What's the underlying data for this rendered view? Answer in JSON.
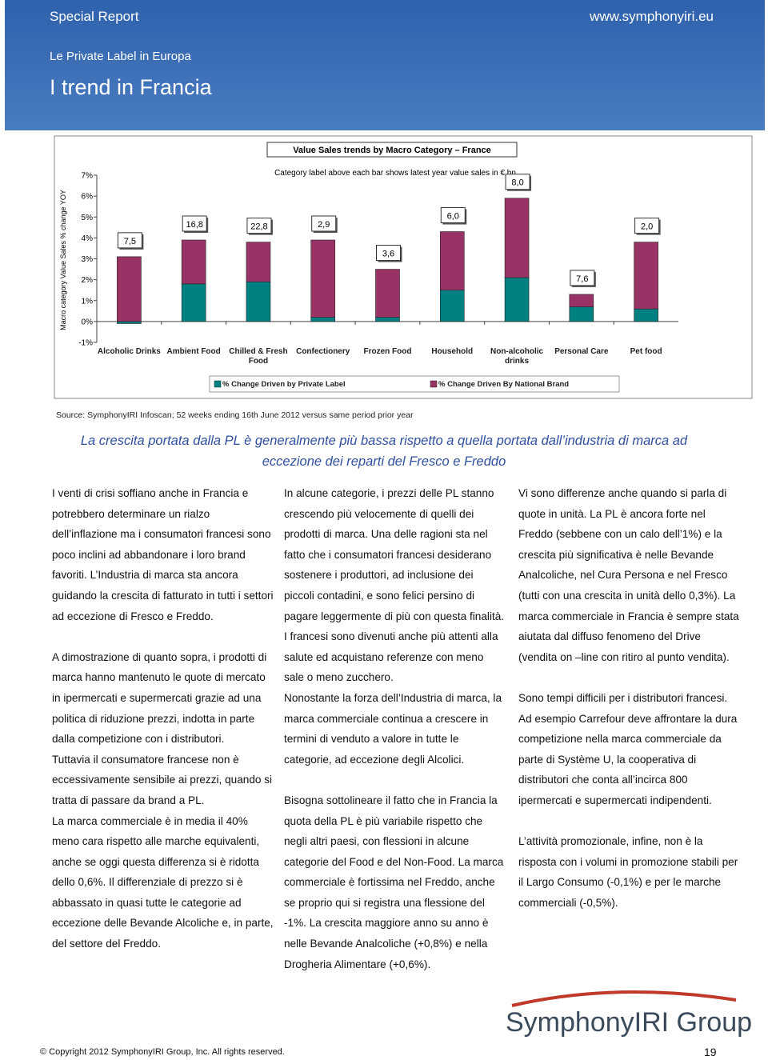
{
  "header": {
    "section": "Special Report",
    "url": "www.symphonyiri.eu",
    "subtitle": "Le Private Label in Europa",
    "title": "I trend in Francia"
  },
  "chart_data": {
    "type": "bar",
    "stacked": true,
    "title": "Value Sales trends by Macro Category – France",
    "subtitle": "Category label above each bar shows latest year value sales in € bn",
    "ylabel": "Macro category Value Sales % change YOY",
    "categories": [
      "Alcoholic Drinks",
      "Ambient Food",
      "Chilled & Fresh Food",
      "Confectionery",
      "Frozen Food",
      "Household",
      "Non-alcoholic drinks",
      "Personal Care",
      "Pet food"
    ],
    "bar_labels": [
      "7,5",
      "16,8",
      "22,8",
      "2,9",
      "3,6",
      "6,0",
      "8,0",
      "7,6",
      "2,0"
    ],
    "series": [
      {
        "name": "% Change Driven by Private Label",
        "color": "#008080",
        "values": [
          -0.1,
          1.8,
          1.9,
          0.2,
          0.2,
          1.5,
          2.1,
          0.7,
          0.6
        ]
      },
      {
        "name": "% Change Driven By National Brand",
        "color": "#993366",
        "values": [
          3.1,
          2.1,
          1.9,
          3.7,
          2.3,
          2.8,
          3.8,
          0.6,
          3.2
        ]
      }
    ],
    "ylim": [
      -1,
      7
    ],
    "yticks": [
      {
        "value": -1,
        "label": "-1%"
      },
      {
        "value": 0,
        "label": "0%"
      },
      {
        "value": 1,
        "label": "1%"
      },
      {
        "value": 2,
        "label": "2%"
      },
      {
        "value": 3,
        "label": "3%"
      },
      {
        "value": 4,
        "label": "4%"
      },
      {
        "value": 5,
        "label": "5%"
      },
      {
        "value": 6,
        "label": "6%"
      },
      {
        "value": 7,
        "label": "7%"
      }
    ],
    "grid": false
  },
  "source": "Source:  SymphonyIRI Infoscan; 52 weeks ending 16th June 2012 versus same period prior year",
  "highlight": "La crescita portata dalla PL è generalmente più bassa rispetto a quella portata dall’industria di marca ad eccezione dei reparti del Fresco e Freddo",
  "columns": [
    [
      [
        "I venti di crisi soffiano anche in Francia e potrebbero determinare un rialzo dell’inflazione ma i consumatori francesi sono poco inclini ad abbandonare i loro brand favoriti. L’Industria di marca sta ancora guidando la crescita di fatturato in tutti i settori ad eccezione di Fresco e Freddo."
      ],
      [
        "A dimostrazione di quanto sopra, i prodotti di marca hanno mantenuto le quote di mercato in ipermercati e supermercati grazie ad una politica di riduzione prezzi, indotta in parte dalla competizione con i distributori.",
        "Tuttavia il consumatore francese non è eccessivamente sensibile ai prezzi, quando si tratta di passare da brand a PL.",
        "La marca commerciale è in media il 40% meno cara rispetto alle marche equivalenti, anche se oggi questa differenza si è ridotta dello 0,6%. Il differenziale di prezzo si è abbassato in quasi tutte le categorie ad eccezione delle Bevande Alcoliche e, in parte, del settore del Freddo."
      ]
    ],
    [
      [
        "In alcune categorie, i prezzi delle PL stanno crescendo più velocemente di quelli dei prodotti di marca. Una delle ragioni sta nel fatto che i consumatori francesi desiderano sostenere i produttori, ad inclusione dei piccoli contadini, e sono felici persino di pagare leggermente di più con questa finalità.",
        "I francesi sono divenuti anche più attenti alla salute ed acquistano referenze con meno sale o meno zucchero.",
        "Nonostante la forza dell’Industria di marca, la marca commerciale continua a crescere in termini di venduto a valore in tutte le categorie, ad eccezione degli Alcolici."
      ],
      [
        "Bisogna sottolineare il fatto che in Francia la quota della PL è più variabile rispetto che negli altri paesi, con flessioni in alcune categorie del Food e del Non-Food. La marca commerciale è fortissima nel Freddo, anche se proprio qui si registra una flessione del -1%. La crescita maggiore anno su anno è nelle Bevande Analcoliche (+0,8%) e nella Drogheria Alimentare (+0,6%)."
      ]
    ],
    [
      [
        "Vi sono differenze anche quando si parla di quote in unità. La PL è ancora forte nel Freddo (sebbene con un calo dell’1%) e la crescita più significativa è nelle Bevande Analcoliche, nel Cura Persona e nel Fresco (tutti con una crescita in unità dello 0,3%). La marca commerciale in Francia è sempre stata aiutata dal diffuso fenomeno del Drive (vendita on –line con ritiro al punto vendita)."
      ],
      [
        "Sono tempi difficili per i distributori francesi. Ad esempio Carrefour deve affrontare la dura competizione nella marca commerciale da parte di Système U, la cooperativa di distributori  che conta all’incirca 800 ipermercati e supermercati indipendenti."
      ],
      [
        "L’attività promozionale, infine, non è la risposta con i volumi in promozione stabili per il  Largo Consumo (-0,1%) e per le marche commerciali (-0,5%)."
      ]
    ]
  ],
  "logo": "SymphonyIRI Group",
  "footer": {
    "copyright": "© Copyright 2012 SymphonyIRI Group, Inc. All rights reserved.",
    "page": "19"
  }
}
